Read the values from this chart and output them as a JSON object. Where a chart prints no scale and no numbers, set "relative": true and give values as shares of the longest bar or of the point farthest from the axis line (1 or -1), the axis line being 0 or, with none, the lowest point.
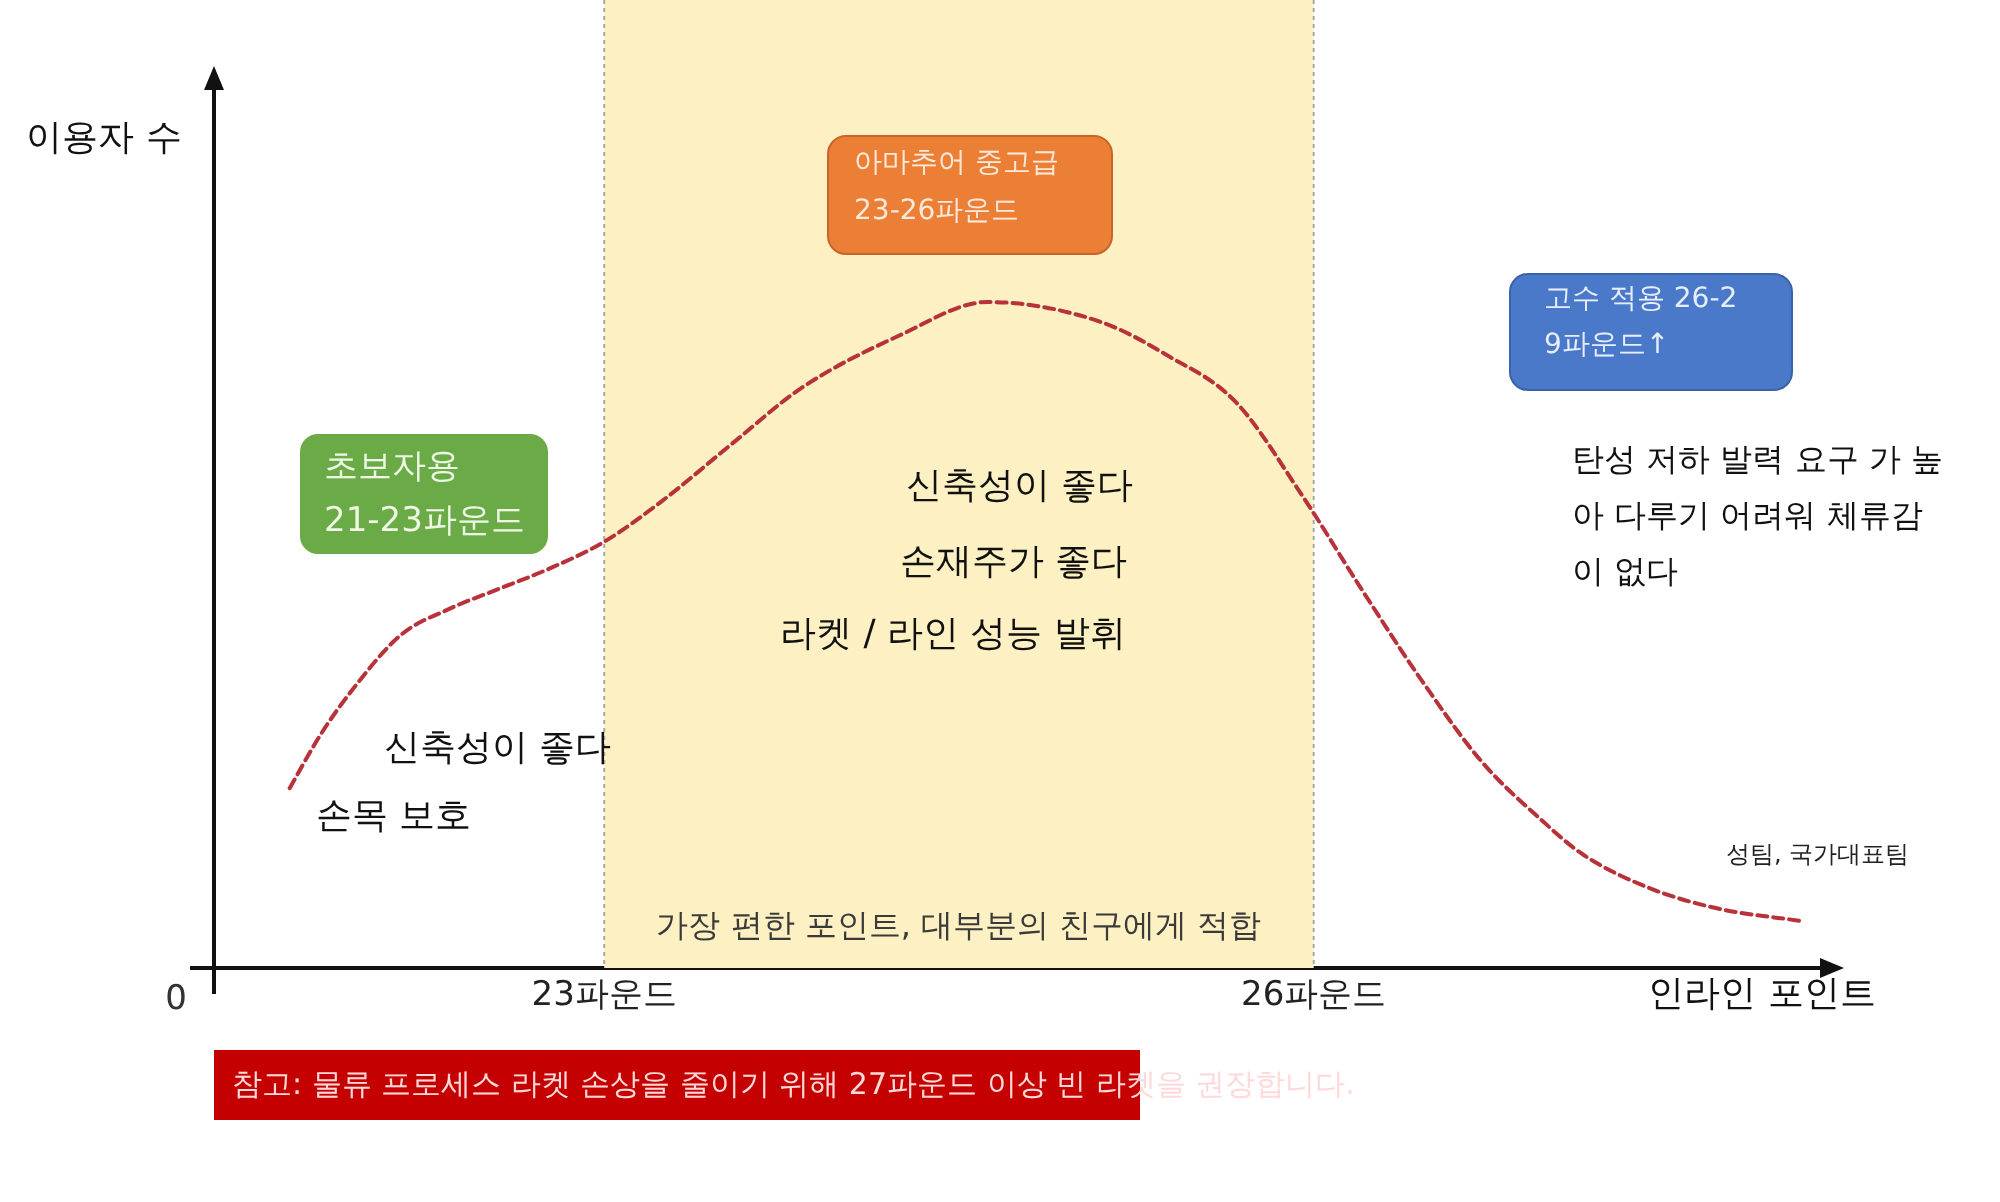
{
  "chart_data": {
    "type": "line",
    "relative": true,
    "xlabel": "인라인 포인트",
    "ylabel": "이용자 수",
    "x": [
      21.67,
      21.8,
      21.94,
      22.14,
      22.35,
      22.56,
      22.77,
      23.0,
      23.24,
      23.55,
      23.83,
      24.25,
      24.62,
      25.1,
      25.38,
      25.67,
      25.95,
      26.2,
      26.46,
      26.71,
      26.97,
      27.14,
      27.42,
      27.7,
      28.07
    ],
    "values": [
      0.27,
      0.35,
      0.42,
      0.5,
      0.54,
      0.57,
      0.6,
      0.64,
      0.7,
      0.79,
      0.87,
      0.95,
      1,
      0.97,
      0.92,
      0.85,
      0.71,
      0.57,
      0.43,
      0.31,
      0.22,
      0.17,
      0.12,
      0.09,
      0.07
    ],
    "color": "#b8323a",
    "line_style": "dashed",
    "xlim": [
      21.35,
      28.2
    ],
    "xticks": [
      {
        "value": 23,
        "label": "23파운드"
      },
      {
        "value": 26,
        "label": "26파운드"
      }
    ],
    "bands": [
      {
        "axis": "x",
        "from": 23,
        "to": 26,
        "label": "가장 편한 포인트, 대부분의 친구에게 적합",
        "color": "#fdf0c2"
      }
    ],
    "annotations": [
      "0",
      "초보자용\n21-23파운드",
      "아마추어 중고급\n23-26파운드",
      "고수 적용 26-2\n9파운드↑",
      "신축성이 좋다",
      "손목 보호",
      "신축성이 좋다",
      "손재주가 좋다",
      "라켓 / 라인 성능 발휘",
      "탄성 저하 발력 요구 가 높\n아 다루기 어려워 체류감\n이 없다",
      "성팀, 국가대표팀",
      "참고: 물류 프로세스 라켓 손상을 줄이기 위해 27파운드 이상 빈 라켓을 권장합니다."
    ]
  }
}
